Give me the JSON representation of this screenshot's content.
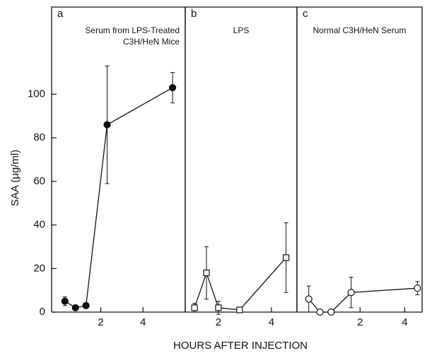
{
  "chart_data": [
    {
      "type": "line",
      "panel": "a",
      "title": [
        "Serum from LPS-Treated",
        "C3H/HeN Mice"
      ],
      "ylabel": "SAA (µg/ml)",
      "x": [
        0.3,
        0.8,
        1.3,
        2.3,
        5.4
      ],
      "values": [
        5,
        2,
        3,
        86,
        103
      ],
      "errors": [
        2,
        0,
        0,
        27,
        7
      ],
      "marker": "filled-circle",
      "color": "#111111",
      "xlim": [
        -0.33,
        6
      ],
      "xticks": [
        2,
        4
      ],
      "ylim": [
        0,
        140
      ],
      "yticks": [
        0,
        20,
        40,
        60,
        80,
        100
      ]
    },
    {
      "type": "line",
      "panel": "b",
      "title": [
        "LPS"
      ],
      "xlabel": "HOURS AFTER INJECTION",
      "x": [
        1.1,
        1.55,
        2.0,
        2.8,
        4.55
      ],
      "values": [
        2,
        18,
        2,
        1,
        25
      ],
      "errors": [
        2,
        12,
        3,
        0,
        16
      ],
      "marker": "open-square",
      "color": "#111111",
      "xlim": [
        0.75,
        4.96
      ],
      "xticks": [
        2,
        4
      ],
      "ylim": [
        0,
        140
      ]
    },
    {
      "type": "line",
      "panel": "c",
      "title": [
        "Normal C3H/HeN Serum"
      ],
      "x": [
        -0.3,
        0.2,
        0.7,
        1.6,
        4.57
      ],
      "values": [
        6,
        0,
        0,
        9,
        11
      ],
      "errors": [
        6,
        0,
        0,
        7,
        3
      ],
      "marker": "open-circle",
      "color": "#111111",
      "xlim": [
        -0.83,
        4.78
      ],
      "xticks": [
        2,
        4
      ],
      "ylim": [
        0,
        140
      ]
    }
  ]
}
